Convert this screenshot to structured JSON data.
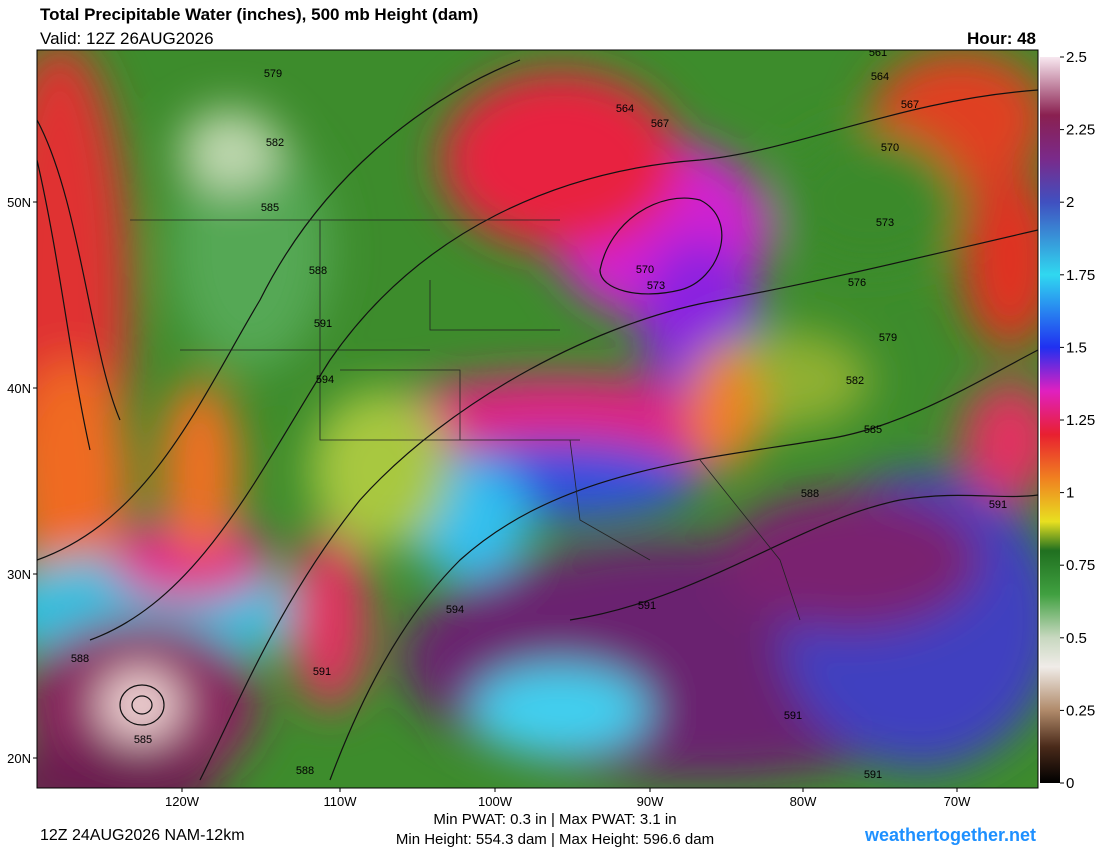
{
  "header": {
    "title": "Total Precipitable Water (inches), 500 mb Height (dam)",
    "valid": "Valid: 12Z 26AUG2026",
    "hour": "Hour: 48"
  },
  "map": {
    "lat_labels": [
      "50N",
      "40N",
      "30N",
      "20N"
    ],
    "lon_labels": [
      "120W",
      "110W",
      "100W",
      "90W",
      "80W",
      "70W"
    ],
    "contour_labels": [
      579,
      582,
      585,
      588,
      591,
      594,
      564,
      567,
      570,
      573,
      561,
      564,
      567,
      570,
      573,
      576,
      579,
      582,
      585,
      588,
      591,
      591,
      594,
      591,
      588,
      585,
      588,
      591,
      591
    ]
  },
  "colorbar": {
    "range": [
      0,
      2.5
    ],
    "ticks": [
      0,
      0.25,
      0.5,
      0.75,
      1,
      1.25,
      1.5,
      1.75,
      2,
      2.25,
      2.5
    ]
  },
  "footer": {
    "run": "12Z 24AUG2026 NAM-12km",
    "pwat": "Min PWAT:   0.3 in | Max PWAT:   3.1 in",
    "height": "Min Height: 554.3 dam | Max Height: 596.6 dam",
    "site": "weathertogether.net"
  }
}
